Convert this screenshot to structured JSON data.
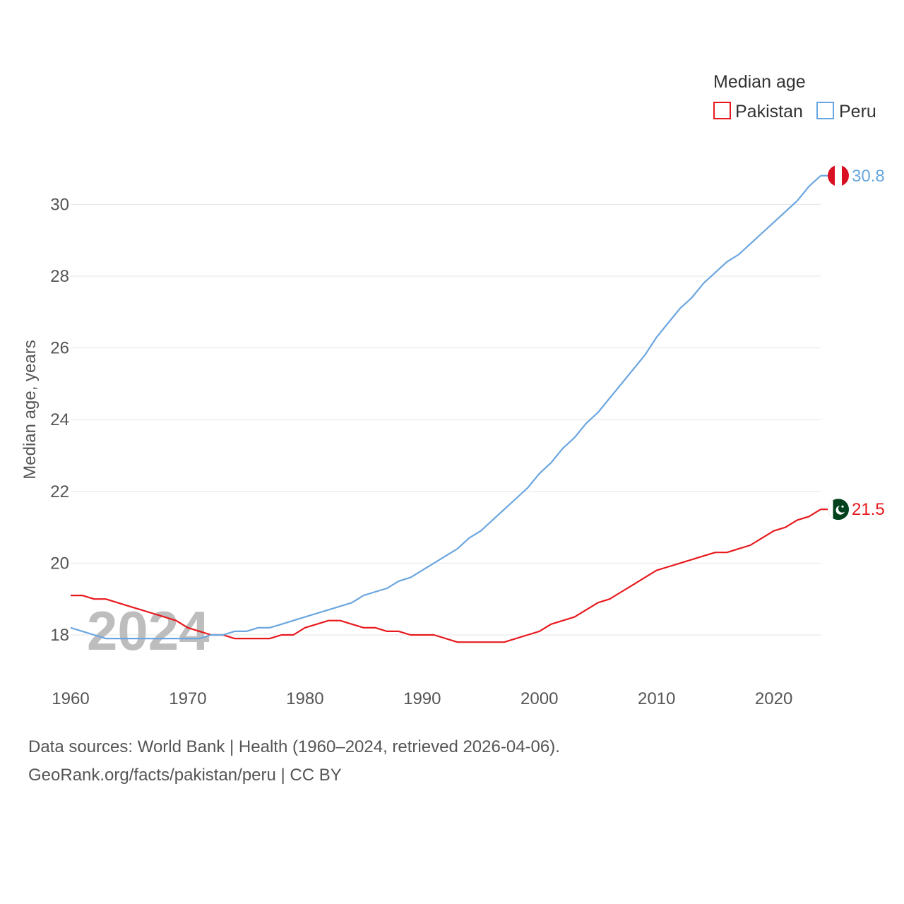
{
  "chart_data": {
    "type": "line",
    "title": "Median age",
    "xlabel": "",
    "ylabel": "Median age, years",
    "xlim": [
      1960,
      2024
    ],
    "ylim": [
      17,
      31
    ],
    "x_ticks": [
      1960,
      1970,
      1980,
      1990,
      2000,
      2010,
      2020
    ],
    "y_ticks": [
      18,
      20,
      22,
      24,
      26,
      28,
      30
    ],
    "grid": true,
    "legend_position": "top-right",
    "current_year_label": "2024",
    "x": [
      1960,
      1961,
      1962,
      1963,
      1964,
      1965,
      1966,
      1967,
      1968,
      1969,
      1970,
      1971,
      1972,
      1973,
      1974,
      1975,
      1976,
      1977,
      1978,
      1979,
      1980,
      1981,
      1982,
      1983,
      1984,
      1985,
      1986,
      1987,
      1988,
      1989,
      1990,
      1991,
      1992,
      1993,
      1994,
      1995,
      1996,
      1997,
      1998,
      1999,
      2000,
      2001,
      2002,
      2003,
      2004,
      2005,
      2006,
      2007,
      2008,
      2009,
      2010,
      2011,
      2012,
      2013,
      2014,
      2015,
      2016,
      2017,
      2018,
      2019,
      2020,
      2021,
      2022,
      2023,
      2024
    ],
    "series": [
      {
        "name": "Pakistan",
        "color": "#e8191e",
        "end_label": "21.5",
        "flag": "pakistan-flag",
        "values": [
          19.1,
          19.1,
          19.0,
          19.0,
          18.9,
          18.8,
          18.7,
          18.6,
          18.5,
          18.4,
          18.2,
          18.1,
          18.0,
          18.0,
          17.9,
          17.9,
          17.9,
          17.9,
          18.0,
          18.0,
          18.2,
          18.3,
          18.4,
          18.4,
          18.3,
          18.2,
          18.2,
          18.1,
          18.1,
          18.0,
          18.0,
          18.0,
          17.9,
          17.8,
          17.8,
          17.8,
          17.8,
          17.8,
          17.9,
          18.0,
          18.1,
          18.3,
          18.4,
          18.5,
          18.7,
          18.9,
          19.0,
          19.2,
          19.4,
          19.6,
          19.8,
          19.9,
          20.0,
          20.1,
          20.2,
          20.3,
          20.3,
          20.4,
          20.5,
          20.7,
          20.9,
          21.0,
          21.2,
          21.3,
          21.5
        ]
      },
      {
        "name": "Peru",
        "color": "#6aa6e0",
        "end_label": "30.8",
        "flag": "peru-flag",
        "values": [
          18.2,
          18.1,
          18.0,
          17.9,
          17.9,
          17.9,
          17.9,
          17.9,
          17.9,
          17.9,
          17.9,
          17.9,
          18.0,
          18.0,
          18.1,
          18.1,
          18.2,
          18.2,
          18.3,
          18.4,
          18.5,
          18.6,
          18.7,
          18.8,
          18.9,
          19.1,
          19.2,
          19.3,
          19.5,
          19.6,
          19.8,
          20.0,
          20.2,
          20.4,
          20.7,
          20.9,
          21.2,
          21.5,
          21.8,
          22.1,
          22.5,
          22.8,
          23.2,
          23.5,
          23.9,
          24.2,
          24.6,
          25.0,
          25.4,
          25.8,
          26.3,
          26.7,
          27.1,
          27.4,
          27.8,
          28.1,
          28.4,
          28.6,
          28.9,
          29.2,
          29.5,
          29.8,
          30.1,
          30.5,
          30.8
        ]
      }
    ]
  },
  "footer": {
    "sources": "Data sources: World Bank | Health (1960–2024, retrieved 2026-04-06).",
    "attribution": "GeoRank.org/facts/pakistan/peru | CC BY"
  }
}
